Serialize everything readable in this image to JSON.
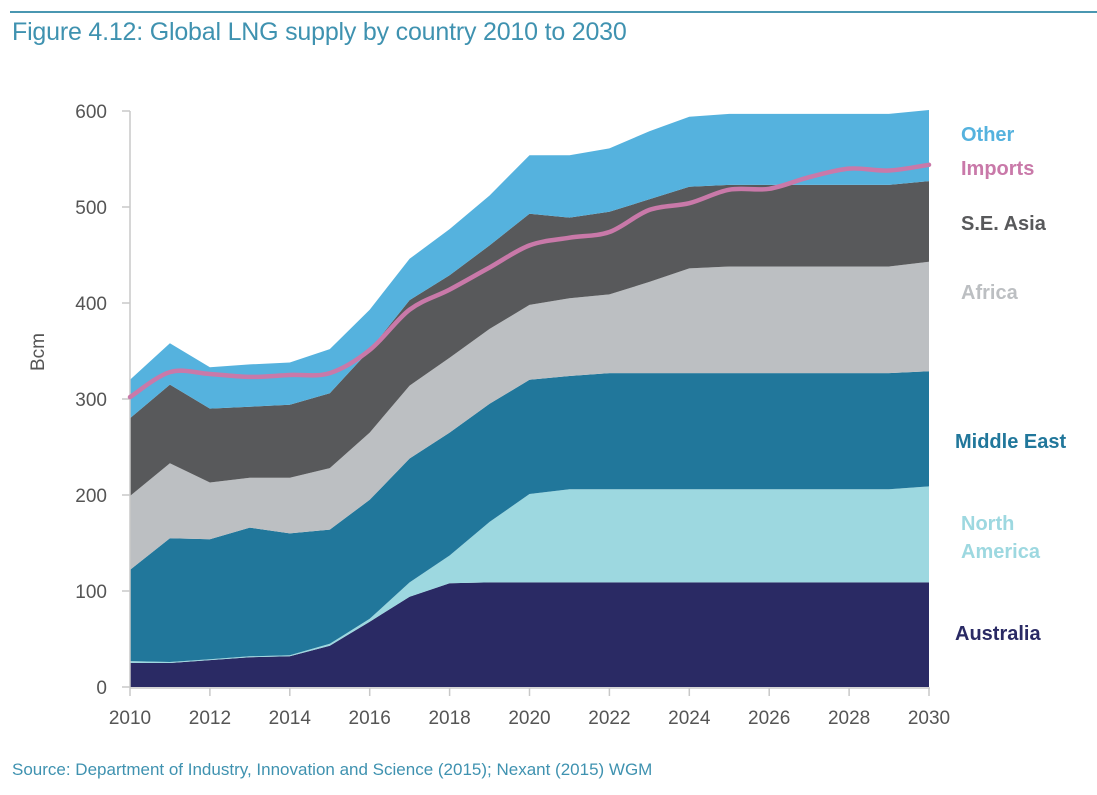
{
  "figure": {
    "title": "Figure 4.12: Global LNG supply by country 2010 to 2030",
    "source": "Source: Department of Industry, Innovation and Science (2015); Nexant (2015) WGM"
  },
  "chart_data": {
    "type": "area",
    "stacked": true,
    "title": "Figure 4.12: Global LNG supply by country 2010 to 2030",
    "xlabel": "",
    "ylabel": "Bcm",
    "xlim": [
      2010,
      2030
    ],
    "ylim": [
      0,
      600
    ],
    "x": [
      2010,
      2011,
      2012,
      2013,
      2014,
      2015,
      2016,
      2017,
      2018,
      2019,
      2020,
      2021,
      2022,
      2023,
      2024,
      2025,
      2026,
      2027,
      2028,
      2029,
      2030
    ],
    "x_ticks": [
      "2010",
      "2012",
      "2014",
      "2016",
      "2018",
      "2020",
      "2022",
      "2024",
      "2026",
      "2028",
      "2030"
    ],
    "y_ticks": [
      "0",
      "100",
      "200",
      "300",
      "400",
      "500",
      "600"
    ],
    "grid": false,
    "legend": "right (inline labels)",
    "series": [
      {
        "name": "Australia",
        "label": "Australia",
        "color": "#2a2a64",
        "values": [
          25,
          25,
          28,
          31,
          32,
          43,
          68,
          94,
          108,
          109,
          109,
          109,
          109,
          109,
          109,
          109,
          109,
          109,
          109,
          109,
          109
        ]
      },
      {
        "name": "North America",
        "label_lines": [
          "North",
          "America"
        ],
        "color": "#9dd8e0",
        "values": [
          2,
          1,
          1,
          1,
          1,
          2,
          3,
          15,
          29,
          63,
          92,
          97,
          97,
          97,
          97,
          97,
          97,
          97,
          97,
          97,
          100
        ]
      },
      {
        "name": "Middle East",
        "label": "Middle East",
        "color": "#21779b",
        "values": [
          95,
          129,
          125,
          134,
          127,
          119,
          124,
          129,
          128,
          123,
          119,
          118,
          121,
          121,
          121,
          121,
          121,
          121,
          121,
          121,
          120
        ]
      },
      {
        "name": "Africa",
        "label": "Africa",
        "color": "#bcbfc2",
        "values": [
          77,
          78,
          59,
          52,
          58,
          64,
          70,
          76,
          78,
          78,
          78,
          81,
          82,
          95,
          109,
          111,
          111,
          111,
          111,
          111,
          114
        ]
      },
      {
        "name": "S.E. Asia",
        "label": "S.E. Asia",
        "color": "#58595b",
        "values": [
          81,
          82,
          77,
          74,
          76,
          78,
          86,
          89,
          86,
          87,
          95,
          84,
          86,
          86,
          85,
          85,
          85,
          85,
          85,
          85,
          84
        ]
      },
      {
        "name": "Other",
        "label": "Other",
        "color": "#55b2de",
        "values": [
          40,
          43,
          43,
          44,
          44,
          46,
          42,
          43,
          48,
          52,
          61,
          65,
          66,
          71,
          73,
          74,
          74,
          74,
          74,
          74,
          74
        ]
      }
    ],
    "line_series": {
      "name": "Imports",
      "label": "Imports",
      "color": "#c979a9",
      "values": [
        302,
        328,
        326,
        323,
        325,
        327,
        351,
        393,
        414,
        437,
        460,
        468,
        474,
        497,
        504,
        518,
        519,
        531,
        540,
        538,
        544
      ]
    }
  }
}
